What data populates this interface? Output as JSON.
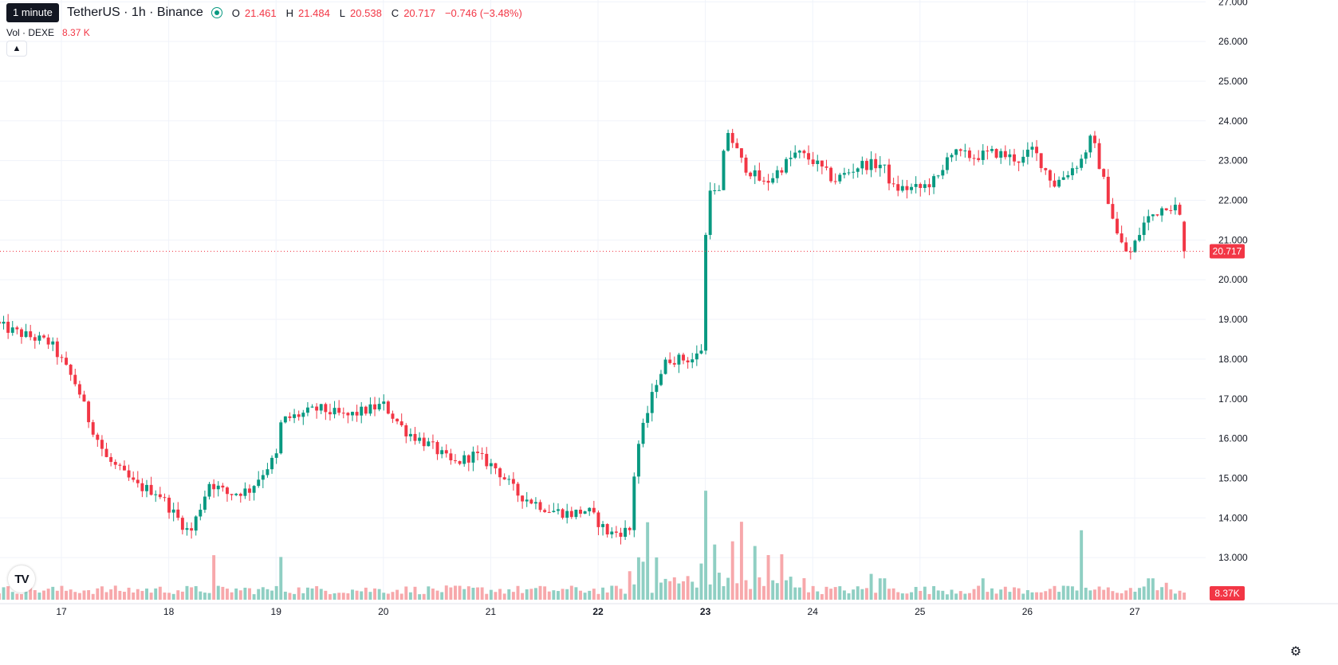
{
  "header": {
    "tooltip": "1 minute",
    "symbol": "TetherUS · 1h · Binance",
    "ohlc": {
      "o_label": "O",
      "o": "21.461",
      "h_label": "H",
      "h": "21.484",
      "l_label": "L",
      "l": "20.538",
      "c_label": "C",
      "c": "20.717"
    },
    "change": "−0.746 (−3.48%)",
    "vol_label": "Vol · DEXE",
    "vol_value": "8.37 K"
  },
  "colors": {
    "up": "#089981",
    "down": "#f23645",
    "up_vol": "#8fcfc3",
    "down_vol": "#f7a8ab",
    "grid": "#f0f3fa"
  },
  "icons": {
    "collapse": "chevron-up-icon",
    "logo": "tradingview-logo-icon",
    "settings": "gear-icon"
  },
  "logo_text": "TV",
  "chart_data": {
    "type": "candlestick",
    "title": "",
    "xlabel": "",
    "ylabel": "",
    "ylim": [
      12.0,
      27.0
    ],
    "y_ticks": [
      "13.000",
      "14.000",
      "15.000",
      "16.000",
      "17.000",
      "18.000",
      "19.000",
      "20.000",
      "21.000",
      "22.000",
      "23.000",
      "24.000",
      "25.000",
      "26.000",
      "27.000"
    ],
    "x_ticks": [
      "17",
      "18",
      "19",
      "20",
      "21",
      "22",
      "23",
      "24",
      "25",
      "26",
      "27"
    ],
    "x_tick_values": [
      1,
      2,
      3,
      4,
      5,
      6,
      7,
      8,
      9,
      10,
      11
    ],
    "bold_x_ticks": [
      "22",
      "23"
    ],
    "last_price": 20.717,
    "last_price_label": "20.717",
    "last_volume_label": "8.37K",
    "volume_max": 8500,
    "anchors": [
      [
        0.42,
        18.85
      ],
      [
        0.55,
        18.7
      ],
      [
        0.9,
        18.4
      ],
      [
        1.15,
        17.3
      ],
      [
        1.25,
        16.5
      ],
      [
        1.42,
        15.5
      ],
      [
        1.7,
        14.8
      ],
      [
        1.9,
        14.65
      ],
      [
        2.05,
        14.1
      ],
      [
        2.2,
        13.6
      ],
      [
        2.38,
        14.9
      ],
      [
        2.55,
        14.6
      ],
      [
        2.75,
        14.7
      ],
      [
        2.95,
        15.4
      ],
      [
        3.0,
        15.5
      ],
      [
        3.05,
        16.45
      ],
      [
        3.4,
        16.75
      ],
      [
        3.65,
        16.55
      ],
      [
        4.0,
        16.85
      ],
      [
        4.2,
        16.2
      ],
      [
        4.45,
        15.8
      ],
      [
        4.65,
        15.35
      ],
      [
        4.85,
        15.6
      ],
      [
        5.05,
        15.25
      ],
      [
        5.25,
        14.6
      ],
      [
        5.55,
        14.2
      ],
      [
        5.75,
        14.1
      ],
      [
        5.9,
        14.2
      ],
      [
        6.1,
        13.6
      ],
      [
        6.3,
        13.7
      ],
      [
        6.35,
        15.6
      ],
      [
        6.55,
        17.5
      ],
      [
        6.65,
        18.0
      ],
      [
        6.9,
        18.0
      ],
      [
        6.97,
        18.3
      ],
      [
        7.02,
        22.5
      ],
      [
        7.12,
        22.0
      ],
      [
        7.2,
        23.8
      ],
      [
        7.35,
        22.9
      ],
      [
        7.55,
        22.4
      ],
      [
        7.85,
        23.2
      ],
      [
        8.0,
        23.0
      ],
      [
        8.2,
        22.5
      ],
      [
        8.45,
        22.9
      ],
      [
        8.65,
        22.9
      ],
      [
        8.75,
        22.3
      ],
      [
        9.0,
        22.3
      ],
      [
        9.2,
        22.6
      ],
      [
        9.25,
        23.2
      ],
      [
        9.5,
        23.1
      ],
      [
        9.7,
        23.2
      ],
      [
        9.95,
        23.0
      ],
      [
        10.05,
        23.3
      ],
      [
        10.25,
        22.4
      ],
      [
        10.5,
        23.0
      ],
      [
        10.6,
        23.6
      ],
      [
        10.7,
        22.6
      ],
      [
        10.85,
        21.0
      ],
      [
        10.95,
        20.6
      ],
      [
        11.1,
        21.5
      ],
      [
        11.2,
        21.7
      ],
      [
        11.3,
        21.9
      ],
      [
        11.4,
        21.8
      ],
      [
        11.5,
        20.72
      ]
    ],
    "volume_spikes": [
      [
        2.42,
        2500
      ],
      [
        3.05,
        2400
      ],
      [
        6.3,
        1600
      ],
      [
        6.4,
        1800
      ],
      [
        6.45,
        3900
      ],
      [
        6.55,
        1500
      ],
      [
        6.97,
        1700
      ],
      [
        7.02,
        5700
      ],
      [
        7.1,
        2600
      ],
      [
        7.25,
        2800
      ],
      [
        7.35,
        3700
      ],
      [
        7.45,
        2700
      ],
      [
        7.6,
        1800
      ],
      [
        7.7,
        2000
      ],
      [
        8.55,
        1450
      ],
      [
        8.65,
        1200
      ],
      [
        9.6,
        1200
      ],
      [
        10.5,
        3900
      ],
      [
        11.15,
        1200
      ],
      [
        11.3,
        950
      ]
    ]
  }
}
